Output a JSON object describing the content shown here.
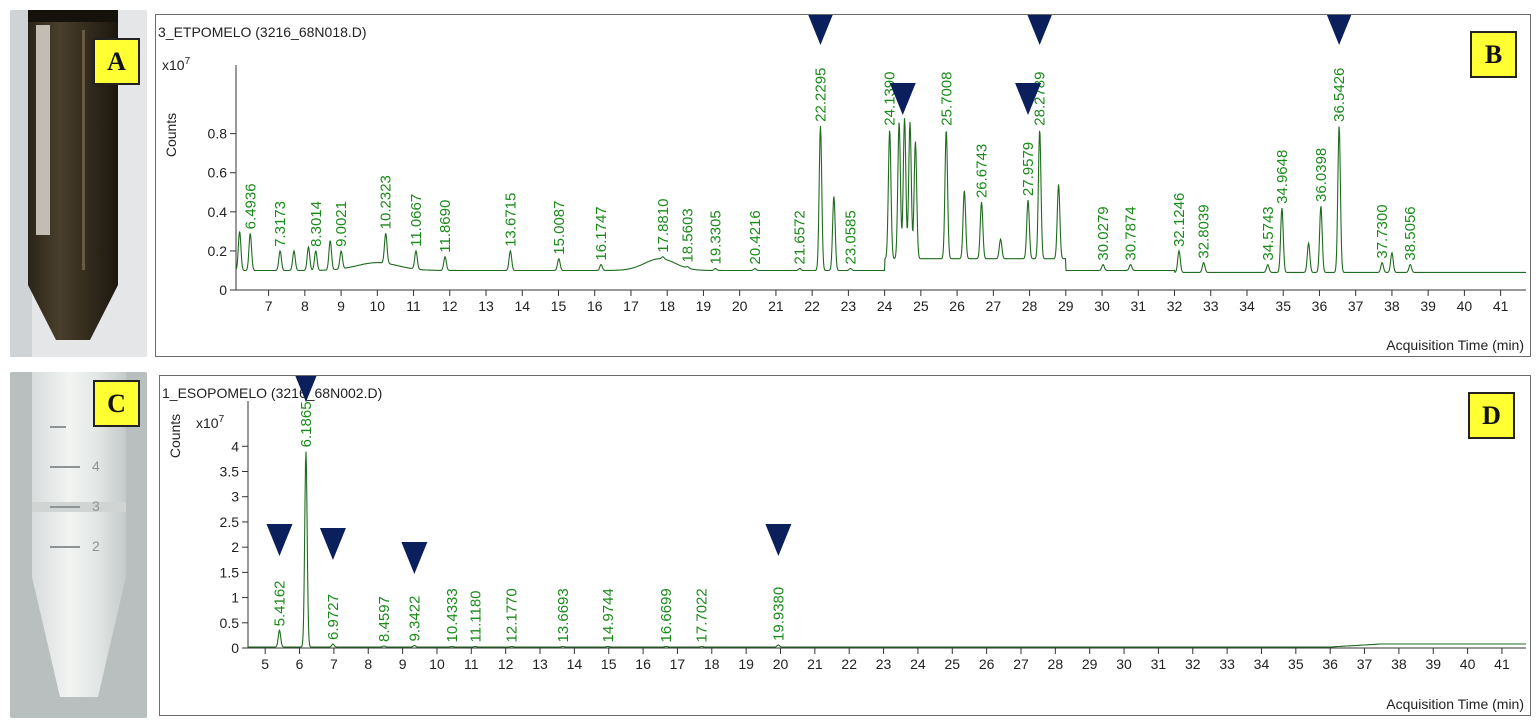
{
  "panel_labels": {
    "a": "A",
    "b": "B",
    "c": "C",
    "d": "D"
  },
  "colors": {
    "trace": "#1f6b1f",
    "peak_label": "#1a8a1a",
    "marker": "#0b1f5c",
    "badge": "#ffff33"
  },
  "chart_data": [
    {
      "type": "line",
      "title": "3_ETPOMELO (3216_68N018.D)",
      "scale_label": "x10",
      "scale_exponent": "7",
      "ylabel": "Counts",
      "xlabel": "Acquisition Time (min)",
      "xlim": [
        6.1,
        41.7
      ],
      "ylim": [
        0,
        1.1
      ],
      "yticks": [
        "0",
        "0.2",
        "0.4",
        "0.6",
        "0.8"
      ],
      "ytick_values": [
        0,
        0.2,
        0.4,
        0.6,
        0.8
      ],
      "xticks": [
        "7",
        "8",
        "9",
        "10",
        "11",
        "12",
        "13",
        "14",
        "15",
        "16",
        "17",
        "18",
        "19",
        "20",
        "21",
        "22",
        "23",
        "24",
        "25",
        "26",
        "27",
        "28",
        "29",
        "30",
        "31",
        "32",
        "33",
        "34",
        "35",
        "36",
        "37",
        "38",
        "39",
        "40",
        "41"
      ],
      "xtick_values": [
        7,
        8,
        9,
        10,
        11,
        12,
        13,
        14,
        15,
        16,
        17,
        18,
        19,
        20,
        21,
        22,
        23,
        24,
        25,
        26,
        27,
        28,
        29,
        30,
        31,
        32,
        33,
        34,
        35,
        36,
        37,
        38,
        39,
        40,
        41
      ],
      "grid": false,
      "peaks": [
        {
          "label": "6.4936",
          "x": 6.4936,
          "y": 0.29
        },
        {
          "label": "7.3173",
          "x": 7.3173,
          "y": 0.2
        },
        {
          "label": "8.3014",
          "x": 8.3014,
          "y": 0.2
        },
        {
          "label": "9.0021",
          "x": 9.0021,
          "y": 0.2
        },
        {
          "label": "10.2323",
          "x": 10.2323,
          "y": 0.29
        },
        {
          "label": "11.0667",
          "x": 11.0667,
          "y": 0.2
        },
        {
          "label": "11.8690",
          "x": 11.869,
          "y": 0.17
        },
        {
          "label": "13.6715",
          "x": 13.6715,
          "y": 0.2
        },
        {
          "label": "15.0087",
          "x": 15.0087,
          "y": 0.16
        },
        {
          "label": "16.1747",
          "x": 16.1747,
          "y": 0.13
        },
        {
          "label": "17.8810",
          "x": 17.881,
          "y": 0.17
        },
        {
          "label": "18.5603",
          "x": 18.5603,
          "y": 0.12
        },
        {
          "label": "19.3305",
          "x": 19.3305,
          "y": 0.11
        },
        {
          "label": "20.4216",
          "x": 20.4216,
          "y": 0.11
        },
        {
          "label": "21.6572",
          "x": 21.6572,
          "y": 0.11
        },
        {
          "label": "22.2295",
          "x": 22.2295,
          "y": 0.84
        },
        {
          "label": "23.0585",
          "x": 23.0585,
          "y": 0.11
        },
        {
          "label": "24.1390",
          "x": 24.139,
          "y": 0.82
        },
        {
          "label": "25.7008",
          "x": 25.7008,
          "y": 0.82
        },
        {
          "label": "26.6743",
          "x": 26.6743,
          "y": 0.45
        },
        {
          "label": "27.9579",
          "x": 27.9579,
          "y": 0.46
        },
        {
          "label": "28.2789",
          "x": 28.2789,
          "y": 0.82
        },
        {
          "label": "30.0279",
          "x": 30.0279,
          "y": 0.13
        },
        {
          "label": "30.7874",
          "x": 30.7874,
          "y": 0.13
        },
        {
          "label": "32.1246",
          "x": 32.1246,
          "y": 0.2
        },
        {
          "label": "32.8039",
          "x": 32.8039,
          "y": 0.14
        },
        {
          "label": "34.5743",
          "x": 34.5743,
          "y": 0.13
        },
        {
          "label": "34.9648",
          "x": 34.9648,
          "y": 0.42
        },
        {
          "label": "36.0398",
          "x": 36.0398,
          "y": 0.43
        },
        {
          "label": "36.5426",
          "x": 36.5426,
          "y": 0.84
        },
        {
          "label": "37.7300",
          "x": 37.73,
          "y": 0.14
        },
        {
          "label": "38.5056",
          "x": 38.5056,
          "y": 0.13
        }
      ],
      "markers_at": [
        22.2295,
        24.5,
        27.9579,
        28.2789,
        36.5426
      ]
    },
    {
      "type": "line",
      "title": "1_ESOPOMELO (3216_68N002.D)",
      "scale_label": "x10",
      "scale_exponent": "7",
      "ylabel": "Counts",
      "xlabel": "Acquisition Time (min)",
      "xlim": [
        4.5,
        41.7
      ],
      "ylim": [
        0,
        4.7
      ],
      "yticks": [
        "0",
        "0.5",
        "1",
        "1.5",
        "2",
        "2.5",
        "3",
        "3.5",
        "4"
      ],
      "ytick_values": [
        0,
        0.5,
        1,
        1.5,
        2,
        2.5,
        3,
        3.5,
        4
      ],
      "xticks": [
        "5",
        "6",
        "7",
        "8",
        "9",
        "10",
        "11",
        "12",
        "13",
        "14",
        "15",
        "16",
        "17",
        "18",
        "19",
        "20",
        "21",
        "22",
        "23",
        "24",
        "25",
        "26",
        "27",
        "28",
        "29",
        "30",
        "31",
        "32",
        "33",
        "34",
        "35",
        "36",
        "37",
        "38",
        "39",
        "40",
        "41"
      ],
      "xtick_values": [
        5,
        6,
        7,
        8,
        9,
        10,
        11,
        12,
        13,
        14,
        15,
        16,
        17,
        18,
        19,
        20,
        21,
        22,
        23,
        24,
        25,
        26,
        27,
        28,
        29,
        30,
        31,
        32,
        33,
        34,
        35,
        36,
        37,
        38,
        39,
        40,
        41
      ],
      "grid": false,
      "peaks": [
        {
          "label": "5.4162",
          "x": 5.4162,
          "y": 0.35
        },
        {
          "label": "6.1865",
          "x": 6.1865,
          "y": 3.9
        },
        {
          "label": "6.9727",
          "x": 6.9727,
          "y": 0.08
        },
        {
          "label": "8.4597",
          "x": 8.4597,
          "y": 0.04
        },
        {
          "label": "9.3422",
          "x": 9.3422,
          "y": 0.05
        },
        {
          "label": "10.4333",
          "x": 10.4333,
          "y": 0.03
        },
        {
          "label": "11.1180",
          "x": 11.118,
          "y": 0.03
        },
        {
          "label": "12.1770",
          "x": 12.177,
          "y": 0.03
        },
        {
          "label": "13.6693",
          "x": 13.6693,
          "y": 0.03
        },
        {
          "label": "14.9744",
          "x": 14.9744,
          "y": 0.03
        },
        {
          "label": "16.6699",
          "x": 16.6699,
          "y": 0.03
        },
        {
          "label": "17.7022",
          "x": 17.7022,
          "y": 0.03
        },
        {
          "label": "19.9380",
          "x": 19.938,
          "y": 0.06
        }
      ],
      "markers_at": [
        5.4162,
        6.1865,
        6.9727,
        9.3422,
        19.938
      ]
    }
  ]
}
